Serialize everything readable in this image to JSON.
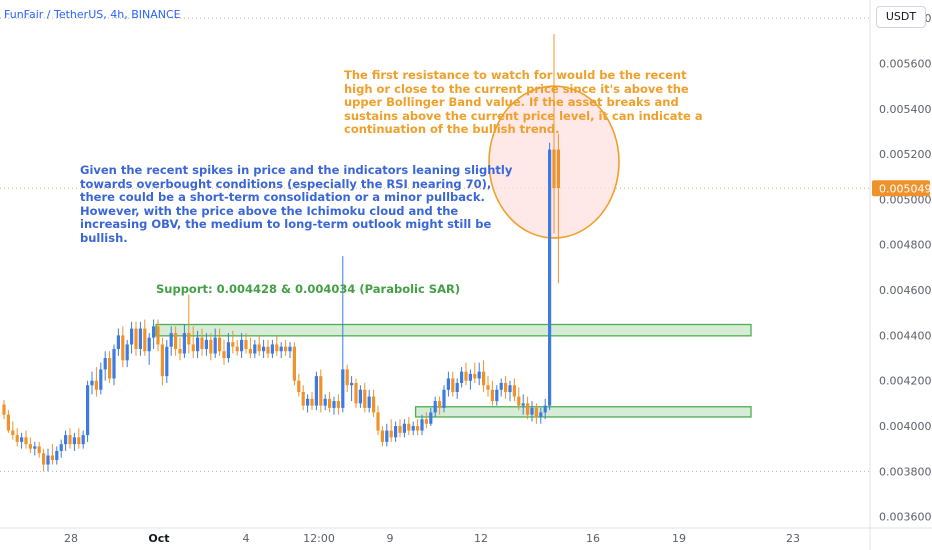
{
  "header": {
    "symbol_line": "FunFair / TetherUS, 4h, BINANCE"
  },
  "currency": "USDT",
  "annotations": {
    "resistance_lines": [
      "The first resistance to watch for would be the recent",
      "high or close to the current price since it's above the",
      "upper Bollinger Band value. If the asset breaks and",
      "sustains above the current price level, it can indicate a",
      "continuation of the bullish trend."
    ],
    "outlook_lines": [
      "Given the recent spikes in price and the indicators leaning slightly",
      "towards overbought conditions (especially the RSI nearing 70),",
      "there could be a short-term consolidation or a minor pullback.",
      "However, with the price above the Ichimoku cloud and the",
      "increasing OBV, the medium to long-term outlook might still be",
      "bullish."
    ],
    "support": "Support: 0.004428 & 0.004034 (Parabolic SAR)"
  },
  "colors": {
    "up": "#3d7be0",
    "down": "#f0922b",
    "resistance_text": "#f0a02a",
    "outlook_text": "#3a66d8",
    "support_text": "#43a047",
    "zone_fill": "#c8e6c9",
    "zone_stroke": "#4caf50",
    "circle_fill": "#fde0e0",
    "circle_stroke": "#f0a02a"
  },
  "chart_data": {
    "type": "candlestick",
    "y_axis": {
      "min": 0.00355,
      "max": 0.00588,
      "ticks": [
        0.0058,
        0.0056,
        0.0054,
        0.0052,
        0.005,
        0.0048,
        0.0046,
        0.0044,
        0.0042,
        0.004,
        0.0038,
        0.0036
      ],
      "tick_labels": [
        "0.005800",
        "0.005600",
        "0.005400",
        "0.005200",
        "0.005000",
        "0.004800",
        "0.004600",
        "0.004400",
        "0.004200",
        "0.004000",
        "0.003800",
        "0.003600"
      ]
    },
    "x_axis": {
      "labels": [
        "28",
        "Oct",
        "4",
        "12:00",
        "9",
        "12",
        "16",
        "19",
        "23"
      ]
    },
    "last_price": 0.005049,
    "last_price_label": "0.005049",
    "dotted_levels": [
      0.0058,
      0.005049,
      0.0038
    ],
    "zones": [
      {
        "name": "resistance-support-zone-upper",
        "from": 0.004398,
        "to": 0.004448,
        "x_from": "Sep 30",
        "x_to": "end"
      },
      {
        "name": "support-zone-lower",
        "from": 0.00404,
        "to": 0.004085,
        "x_from": "Oct 10",
        "x_to": "end"
      }
    ],
    "highlight_circle": {
      "around": "last spike",
      "price_center": 0.005165
    },
    "candles": [
      {
        "o": 0.004095,
        "h": 0.004115,
        "l": 0.00403,
        "c": 0.00405
      },
      {
        "o": 0.00405,
        "h": 0.00407,
        "l": 0.00397,
        "c": 0.00398
      },
      {
        "o": 0.00398,
        "h": 0.00402,
        "l": 0.00394,
        "c": 0.00396
      },
      {
        "o": 0.00396,
        "h": 0.00399,
        "l": 0.00391,
        "c": 0.00393
      },
      {
        "o": 0.00393,
        "h": 0.00397,
        "l": 0.0039,
        "c": 0.00395
      },
      {
        "o": 0.00395,
        "h": 0.00398,
        "l": 0.0039,
        "c": 0.00392
      },
      {
        "o": 0.00392,
        "h": 0.00395,
        "l": 0.00388,
        "c": 0.0039
      },
      {
        "o": 0.0039,
        "h": 0.00393,
        "l": 0.00387,
        "c": 0.00391
      },
      {
        "o": 0.00391,
        "h": 0.00393,
        "l": 0.00386,
        "c": 0.00388
      },
      {
        "o": 0.00388,
        "h": 0.0039,
        "l": 0.0038,
        "c": 0.00383
      },
      {
        "o": 0.00383,
        "h": 0.0039,
        "l": 0.0038,
        "c": 0.00387
      },
      {
        "o": 0.00387,
        "h": 0.00392,
        "l": 0.00383,
        "c": 0.00385
      },
      {
        "o": 0.00385,
        "h": 0.00391,
        "l": 0.00383,
        "c": 0.00389
      },
      {
        "o": 0.00389,
        "h": 0.00394,
        "l": 0.00386,
        "c": 0.00392
      },
      {
        "o": 0.00392,
        "h": 0.00398,
        "l": 0.00389,
        "c": 0.00396
      },
      {
        "o": 0.00396,
        "h": 0.00399,
        "l": 0.0039,
        "c": 0.00392
      },
      {
        "o": 0.00392,
        "h": 0.00397,
        "l": 0.00389,
        "c": 0.00395
      },
      {
        "o": 0.00395,
        "h": 0.00399,
        "l": 0.0039,
        "c": 0.00392
      },
      {
        "o": 0.00392,
        "h": 0.00398,
        "l": 0.0039,
        "c": 0.00396
      },
      {
        "o": 0.00396,
        "h": 0.0042,
        "l": 0.00393,
        "c": 0.00418
      },
      {
        "o": 0.00418,
        "h": 0.00424,
        "l": 0.00414,
        "c": 0.0042
      },
      {
        "o": 0.0042,
        "h": 0.00426,
        "l": 0.00413,
        "c": 0.00416
      },
      {
        "o": 0.00416,
        "h": 0.00428,
        "l": 0.00414,
        "c": 0.00425
      },
      {
        "o": 0.00425,
        "h": 0.00433,
        "l": 0.0042,
        "c": 0.0043
      },
      {
        "o": 0.0043,
        "h": 0.00433,
        "l": 0.00419,
        "c": 0.00421
      },
      {
        "o": 0.00421,
        "h": 0.00436,
        "l": 0.00418,
        "c": 0.00434
      },
      {
        "o": 0.00434,
        "h": 0.00443,
        "l": 0.00431,
        "c": 0.0044
      },
      {
        "o": 0.0044,
        "h": 0.00444,
        "l": 0.00426,
        "c": 0.00429
      },
      {
        "o": 0.00429,
        "h": 0.00438,
        "l": 0.00426,
        "c": 0.00436
      },
      {
        "o": 0.00436,
        "h": 0.00446,
        "l": 0.00432,
        "c": 0.00443
      },
      {
        "o": 0.00443,
        "h": 0.00446,
        "l": 0.00431,
        "c": 0.00434
      },
      {
        "o": 0.00434,
        "h": 0.00446,
        "l": 0.00431,
        "c": 0.00443
      },
      {
        "o": 0.00443,
        "h": 0.00447,
        "l": 0.00431,
        "c": 0.00433
      },
      {
        "o": 0.00433,
        "h": 0.00441,
        "l": 0.00427,
        "c": 0.00439
      },
      {
        "o": 0.00439,
        "h": 0.00447,
        "l": 0.00434,
        "c": 0.00444
      },
      {
        "o": 0.00444,
        "h": 0.00447,
        "l": 0.00433,
        "c": 0.00436
      },
      {
        "o": 0.00436,
        "h": 0.00439,
        "l": 0.00418,
        "c": 0.00422
      },
      {
        "o": 0.00422,
        "h": 0.00438,
        "l": 0.00419,
        "c": 0.00435
      },
      {
        "o": 0.00435,
        "h": 0.00444,
        "l": 0.00431,
        "c": 0.00441
      },
      {
        "o": 0.00441,
        "h": 0.00444,
        "l": 0.00431,
        "c": 0.00434
      },
      {
        "o": 0.00434,
        "h": 0.00439,
        "l": 0.00429,
        "c": 0.00432
      },
      {
        "o": 0.00432,
        "h": 0.00445,
        "l": 0.0043,
        "c": 0.00441
      },
      {
        "o": 0.00441,
        "h": 0.00458,
        "l": 0.00432,
        "c": 0.00436
      },
      {
        "o": 0.00436,
        "h": 0.00444,
        "l": 0.0043,
        "c": 0.00433
      },
      {
        "o": 0.00433,
        "h": 0.00442,
        "l": 0.0043,
        "c": 0.00439
      },
      {
        "o": 0.00439,
        "h": 0.00443,
        "l": 0.00431,
        "c": 0.00434
      },
      {
        "o": 0.00434,
        "h": 0.00441,
        "l": 0.00431,
        "c": 0.00438
      },
      {
        "o": 0.00438,
        "h": 0.00441,
        "l": 0.00429,
        "c": 0.00432
      },
      {
        "o": 0.00432,
        "h": 0.00443,
        "l": 0.0043,
        "c": 0.00439
      },
      {
        "o": 0.00439,
        "h": 0.00443,
        "l": 0.00431,
        "c": 0.00433
      },
      {
        "o": 0.00433,
        "h": 0.00438,
        "l": 0.00427,
        "c": 0.0043
      },
      {
        "o": 0.0043,
        "h": 0.00441,
        "l": 0.00428,
        "c": 0.00437
      },
      {
        "o": 0.00437,
        "h": 0.00442,
        "l": 0.00432,
        "c": 0.00435
      },
      {
        "o": 0.00435,
        "h": 0.00438,
        "l": 0.00431,
        "c": 0.00433
      },
      {
        "o": 0.00433,
        "h": 0.00441,
        "l": 0.0043,
        "c": 0.00438
      },
      {
        "o": 0.00438,
        "h": 0.00441,
        "l": 0.00432,
        "c": 0.00434
      },
      {
        "o": 0.00434,
        "h": 0.00439,
        "l": 0.0043,
        "c": 0.00432
      },
      {
        "o": 0.00432,
        "h": 0.00438,
        "l": 0.0043,
        "c": 0.00436
      },
      {
        "o": 0.00436,
        "h": 0.0044,
        "l": 0.00431,
        "c": 0.00433
      },
      {
        "o": 0.00433,
        "h": 0.00438,
        "l": 0.0043,
        "c": 0.00435
      },
      {
        "o": 0.00435,
        "h": 0.00438,
        "l": 0.0043,
        "c": 0.00432
      },
      {
        "o": 0.00432,
        "h": 0.00438,
        "l": 0.0043,
        "c": 0.00436
      },
      {
        "o": 0.00436,
        "h": 0.0044,
        "l": 0.00431,
        "c": 0.00433
      },
      {
        "o": 0.00433,
        "h": 0.00437,
        "l": 0.0043,
        "c": 0.00435
      },
      {
        "o": 0.00435,
        "h": 0.00438,
        "l": 0.00431,
        "c": 0.00433
      },
      {
        "o": 0.00433,
        "h": 0.00437,
        "l": 0.0043,
        "c": 0.00435
      },
      {
        "o": 0.00435,
        "h": 0.00437,
        "l": 0.00418,
        "c": 0.0042
      },
      {
        "o": 0.0042,
        "h": 0.00423,
        "l": 0.00413,
        "c": 0.00415
      },
      {
        "o": 0.00415,
        "h": 0.00418,
        "l": 0.00407,
        "c": 0.00409
      },
      {
        "o": 0.00409,
        "h": 0.00414,
        "l": 0.00406,
        "c": 0.00412
      },
      {
        "o": 0.00412,
        "h": 0.00415,
        "l": 0.00407,
        "c": 0.00409
      },
      {
        "o": 0.00409,
        "h": 0.00424,
        "l": 0.00407,
        "c": 0.00422
      },
      {
        "o": 0.00422,
        "h": 0.00425,
        "l": 0.00406,
        "c": 0.00409
      },
      {
        "o": 0.00409,
        "h": 0.00414,
        "l": 0.00407,
        "c": 0.00412
      },
      {
        "o": 0.00412,
        "h": 0.00415,
        "l": 0.00406,
        "c": 0.00408
      },
      {
        "o": 0.00408,
        "h": 0.00413,
        "l": 0.00405,
        "c": 0.00411
      },
      {
        "o": 0.00411,
        "h": 0.00414,
        "l": 0.00405,
        "c": 0.00408
      },
      {
        "o": 0.00408,
        "h": 0.00475,
        "l": 0.00406,
        "c": 0.00425
      },
      {
        "o": 0.00425,
        "h": 0.00427,
        "l": 0.00415,
        "c": 0.00418
      },
      {
        "o": 0.00418,
        "h": 0.00422,
        "l": 0.00411,
        "c": 0.00419
      },
      {
        "o": 0.00419,
        "h": 0.00421,
        "l": 0.00408,
        "c": 0.0041
      },
      {
        "o": 0.0041,
        "h": 0.00418,
        "l": 0.00408,
        "c": 0.00416
      },
      {
        "o": 0.00416,
        "h": 0.00419,
        "l": 0.00406,
        "c": 0.00408
      },
      {
        "o": 0.00408,
        "h": 0.00416,
        "l": 0.00406,
        "c": 0.00413
      },
      {
        "o": 0.00413,
        "h": 0.00416,
        "l": 0.00404,
        "c": 0.00406
      },
      {
        "o": 0.00406,
        "h": 0.00409,
        "l": 0.00396,
        "c": 0.00398
      },
      {
        "o": 0.00398,
        "h": 0.004,
        "l": 0.00391,
        "c": 0.00393
      },
      {
        "o": 0.00393,
        "h": 0.00401,
        "l": 0.00391,
        "c": 0.00398
      },
      {
        "o": 0.00398,
        "h": 0.00403,
        "l": 0.00393,
        "c": 0.00395
      },
      {
        "o": 0.00395,
        "h": 0.00402,
        "l": 0.00393,
        "c": 0.004
      },
      {
        "o": 0.004,
        "h": 0.00403,
        "l": 0.00395,
        "c": 0.00397
      },
      {
        "o": 0.00397,
        "h": 0.00403,
        "l": 0.00395,
        "c": 0.00401
      },
      {
        "o": 0.00401,
        "h": 0.00404,
        "l": 0.00396,
        "c": 0.00398
      },
      {
        "o": 0.00398,
        "h": 0.00402,
        "l": 0.00396,
        "c": 0.004
      },
      {
        "o": 0.004,
        "h": 0.00403,
        "l": 0.00396,
        "c": 0.00398
      },
      {
        "o": 0.00398,
        "h": 0.00405,
        "l": 0.00396,
        "c": 0.00403
      },
      {
        "o": 0.00403,
        "h": 0.00406,
        "l": 0.00399,
        "c": 0.00401
      },
      {
        "o": 0.00401,
        "h": 0.00408,
        "l": 0.004,
        "c": 0.00406
      },
      {
        "o": 0.00406,
        "h": 0.00413,
        "l": 0.00404,
        "c": 0.00411
      },
      {
        "o": 0.00411,
        "h": 0.00413,
        "l": 0.00405,
        "c": 0.00408
      },
      {
        "o": 0.00408,
        "h": 0.00418,
        "l": 0.00406,
        "c": 0.00416
      },
      {
        "o": 0.00416,
        "h": 0.00424,
        "l": 0.00413,
        "c": 0.00421
      },
      {
        "o": 0.00421,
        "h": 0.00424,
        "l": 0.00413,
        "c": 0.00415
      },
      {
        "o": 0.00415,
        "h": 0.00421,
        "l": 0.00412,
        "c": 0.00419
      },
      {
        "o": 0.00419,
        "h": 0.00426,
        "l": 0.00417,
        "c": 0.00424
      },
      {
        "o": 0.00424,
        "h": 0.00428,
        "l": 0.00418,
        "c": 0.0042
      },
      {
        "o": 0.0042,
        "h": 0.00425,
        "l": 0.00416,
        "c": 0.00423
      },
      {
        "o": 0.00423,
        "h": 0.00428,
        "l": 0.00419,
        "c": 0.00421
      },
      {
        "o": 0.00421,
        "h": 0.00428,
        "l": 0.00418,
        "c": 0.00424
      },
      {
        "o": 0.00424,
        "h": 0.00429,
        "l": 0.00415,
        "c": 0.00418
      },
      {
        "o": 0.00418,
        "h": 0.00422,
        "l": 0.00413,
        "c": 0.00416
      },
      {
        "o": 0.00416,
        "h": 0.0042,
        "l": 0.00409,
        "c": 0.00411
      },
      {
        "o": 0.00411,
        "h": 0.00418,
        "l": 0.00409,
        "c": 0.00416
      },
      {
        "o": 0.00416,
        "h": 0.00421,
        "l": 0.00413,
        "c": 0.00419
      },
      {
        "o": 0.00419,
        "h": 0.00422,
        "l": 0.00412,
        "c": 0.00415
      },
      {
        "o": 0.00415,
        "h": 0.0042,
        "l": 0.00411,
        "c": 0.00418
      },
      {
        "o": 0.00418,
        "h": 0.00421,
        "l": 0.00411,
        "c": 0.00413
      },
      {
        "o": 0.00413,
        "h": 0.00417,
        "l": 0.00407,
        "c": 0.00409
      },
      {
        "o": 0.00409,
        "h": 0.00414,
        "l": 0.00405,
        "c": 0.0041
      },
      {
        "o": 0.0041,
        "h": 0.00413,
        "l": 0.00403,
        "c": 0.00405
      },
      {
        "o": 0.00405,
        "h": 0.00411,
        "l": 0.00402,
        "c": 0.00408
      },
      {
        "o": 0.00408,
        "h": 0.0041,
        "l": 0.00401,
        "c": 0.00404
      },
      {
        "o": 0.00404,
        "h": 0.00408,
        "l": 0.00401,
        "c": 0.00406
      },
      {
        "o": 0.00406,
        "h": 0.00412,
        "l": 0.00403,
        "c": 0.00409
      },
      {
        "o": 0.00409,
        "h": 0.00525,
        "l": 0.00407,
        "c": 0.00522
      },
      {
        "o": 0.00522,
        "h": 0.00573,
        "l": 0.00485,
        "c": 0.00505
      },
      {
        "o": 0.00522,
        "h": 0.00529,
        "l": 0.00463,
        "c": 0.00505
      }
    ]
  }
}
